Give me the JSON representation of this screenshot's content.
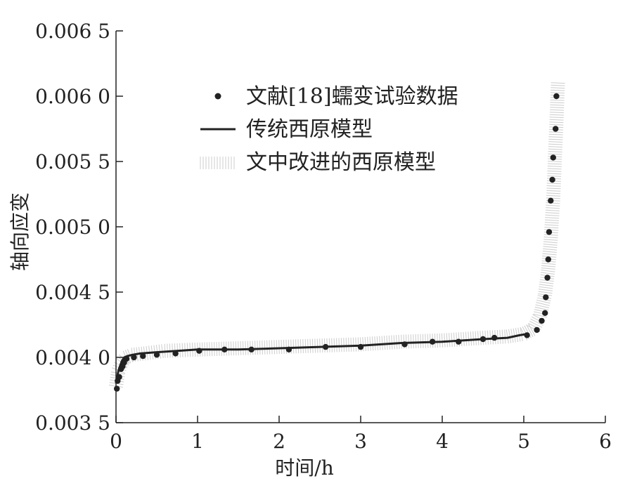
{
  "chart_data": {
    "type": "line",
    "xlabel": "时间/h",
    "ylabel": "轴向应变",
    "xlim": [
      0,
      6
    ],
    "ylim": [
      0.0035,
      0.0065
    ],
    "x_ticks": [
      0,
      1,
      2,
      3,
      4,
      5,
      6
    ],
    "x_tick_labels": [
      "0",
      "1",
      "2",
      "3",
      "4",
      "5",
      "6"
    ],
    "y_ticks": [
      0.0035,
      0.004,
      0.0045,
      0.005,
      0.0055,
      0.006,
      0.0065
    ],
    "y_tick_labels": [
      "0.003 5",
      "0.004 0",
      "0.004 5",
      "0.005 0",
      "0.005 5",
      "0.006 0",
      "0.006 5"
    ],
    "grid": false,
    "legend_position": "top",
    "series": [
      {
        "name": "文献[18]蠕变试验数据",
        "style": "markers",
        "color": "#222222",
        "x": [
          0.01,
          0.02,
          0.04,
          0.06,
          0.08,
          0.1,
          0.13,
          0.22,
          0.33,
          0.5,
          0.73,
          1.02,
          1.33,
          1.66,
          2.12,
          2.57,
          3.0,
          3.54,
          3.88,
          4.2,
          4.5,
          4.64,
          5.04,
          5.16,
          5.22,
          5.26,
          5.27,
          5.29,
          5.3,
          5.31,
          5.33,
          5.35,
          5.36,
          5.39,
          5.4
        ],
        "y": [
          0.00376,
          0.00382,
          0.00385,
          0.00391,
          0.00393,
          0.00396,
          0.00399,
          0.004,
          0.00401,
          0.00402,
          0.00403,
          0.00405,
          0.00406,
          0.00406,
          0.00406,
          0.00408,
          0.00408,
          0.0041,
          0.00412,
          0.00412,
          0.00414,
          0.00415,
          0.00417,
          0.00421,
          0.00428,
          0.00434,
          0.00446,
          0.00461,
          0.00475,
          0.00496,
          0.0052,
          0.00536,
          0.00553,
          0.00575,
          0.006
        ]
      },
      {
        "name": "传统西原模型",
        "style": "line",
        "color": "#222222",
        "x": [
          0,
          0.03,
          0.07,
          0.1,
          0.14,
          0.2,
          0.3,
          0.5,
          0.75,
          1.0,
          1.5,
          2.0,
          2.5,
          3.0,
          3.5,
          4.0,
          4.5,
          4.8,
          4.95,
          5.05
        ],
        "y": [
          0.0038,
          0.0039,
          0.00397,
          0.004,
          0.00401,
          0.00402,
          0.00403,
          0.00404,
          0.00405,
          0.00406,
          0.00406,
          0.00407,
          0.00408,
          0.00409,
          0.00411,
          0.00412,
          0.00414,
          0.00415,
          0.00417,
          0.00418
        ]
      },
      {
        "name": "文中改进的西原模型",
        "style": "hatched-band",
        "color": "#cccccc",
        "x": [
          0.0,
          0.03,
          0.07,
          0.12,
          0.2,
          0.35,
          0.6,
          1.0,
          1.5,
          2.0,
          2.5,
          3.0,
          3.5,
          4.0,
          4.5,
          4.8,
          5.0,
          5.12,
          5.2,
          5.26,
          5.3,
          5.33,
          5.36,
          5.38,
          5.4,
          5.42
        ],
        "y": [
          0.00378,
          0.0039,
          0.00396,
          0.004,
          0.00402,
          0.00403,
          0.00405,
          0.00406,
          0.00407,
          0.00408,
          0.00409,
          0.0041,
          0.00412,
          0.00413,
          0.00415,
          0.00416,
          0.00418,
          0.00422,
          0.00432,
          0.00448,
          0.00468,
          0.0049,
          0.0052,
          0.0055,
          0.0058,
          0.00612
        ]
      }
    ]
  }
}
